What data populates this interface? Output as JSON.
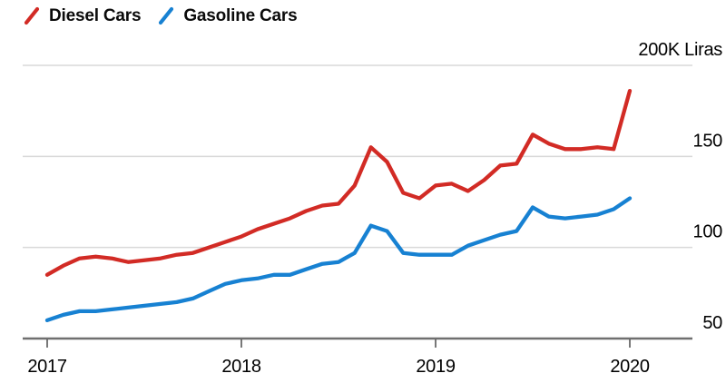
{
  "legend": {
    "items": [
      {
        "label": "Diesel Cars",
        "color": "#d22b25"
      },
      {
        "label": "Gasoline Cars",
        "color": "#1781d2"
      }
    ]
  },
  "chart_data": {
    "type": "line",
    "title": "",
    "xlabel": "",
    "ylabel": "K Liras",
    "unit_label": "200K Liras",
    "ylim": [
      50,
      200
    ],
    "grid": "horizontal",
    "legend_position": "top-left",
    "x": [
      "2017-01",
      "2017-02",
      "2017-03",
      "2017-04",
      "2017-05",
      "2017-06",
      "2017-07",
      "2017-08",
      "2017-09",
      "2017-10",
      "2017-11",
      "2017-12",
      "2018-01",
      "2018-02",
      "2018-03",
      "2018-04",
      "2018-05",
      "2018-06",
      "2018-07",
      "2018-08",
      "2018-09",
      "2018-10",
      "2018-11",
      "2018-12",
      "2019-01",
      "2019-02",
      "2019-03",
      "2019-04",
      "2019-05",
      "2019-06",
      "2019-07",
      "2019-08",
      "2019-09",
      "2019-10",
      "2019-11",
      "2019-12",
      "2020-01"
    ],
    "series": [
      {
        "name": "Diesel Cars",
        "color": "#d22b25",
        "values": [
          85,
          90,
          94,
          95,
          94,
          92,
          93,
          94,
          96,
          97,
          100,
          103,
          106,
          110,
          113,
          116,
          120,
          123,
          124,
          134,
          155,
          147,
          130,
          127,
          134,
          135,
          131,
          137,
          145,
          146,
          162,
          157,
          154,
          154,
          155,
          154,
          186
        ]
      },
      {
        "name": "Gasoline Cars",
        "color": "#1781d2",
        "values": [
          60,
          63,
          65,
          65,
          66,
          67,
          68,
          69,
          70,
          72,
          76,
          80,
          82,
          83,
          85,
          85,
          88,
          91,
          92,
          97,
          112,
          109,
          97,
          96,
          96,
          96,
          101,
          104,
          107,
          109,
          122,
          117,
          116,
          117,
          118,
          121,
          127
        ]
      }
    ],
    "y_ticks": [
      {
        "value": 200,
        "label": "200K Liras"
      },
      {
        "value": 150,
        "label": "150"
      },
      {
        "value": 100,
        "label": "100"
      },
      {
        "value": 50,
        "label": "50"
      }
    ],
    "x_ticks": [
      {
        "label": "2017",
        "month_index": 0
      },
      {
        "label": "2018",
        "month_index": 12
      },
      {
        "label": "2019",
        "month_index": 24
      },
      {
        "label": "2020",
        "month_index": 36
      }
    ],
    "colors": {
      "gridline": "#d9d9d9",
      "axis_line": "#6f6f6f",
      "tick_mark": "#4a4a4a",
      "label_text": "#000000",
      "background": "#ffffff"
    }
  }
}
